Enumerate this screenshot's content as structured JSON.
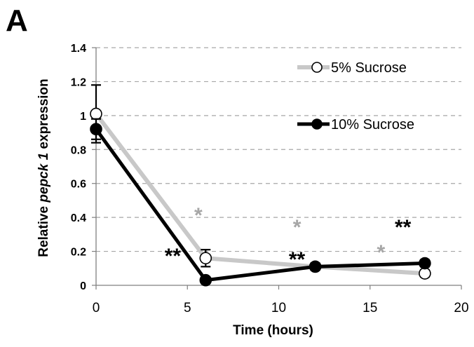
{
  "panel_label": "A",
  "chart_data": {
    "type": "line",
    "xlabel": "Time (hours)",
    "ylabel_parts": [
      "Relative ",
      "pepck 1",
      " expression"
    ],
    "xlim": [
      0,
      20
    ],
    "ylim": [
      0,
      1.4
    ],
    "x_ticks": [
      "0",
      "5",
      "10",
      "15",
      "20"
    ],
    "y_ticks": [
      "0",
      "0.2",
      "0.4",
      "0.6",
      "0.8",
      "1",
      "1.2",
      "1.4"
    ],
    "grid": true,
    "legend_position": "top-right",
    "series": [
      {
        "name": "5% Sucrose",
        "color": "#c8c8c8",
        "marker": "open-circle",
        "x": [
          0,
          6,
          12,
          18
        ],
        "y": [
          1.01,
          0.16,
          0.11,
          0.07
        ],
        "error": [
          0.17,
          0.05,
          0.02,
          0.02
        ]
      },
      {
        "name": "10% Sucrose",
        "color": "#000000",
        "marker": "filled-circle",
        "x": [
          0,
          6,
          12,
          18
        ],
        "y": [
          0.92,
          0.03,
          0.11,
          0.13
        ],
        "error": [
          0.06,
          0.01,
          0.02,
          0.02
        ]
      }
    ],
    "annotations": [
      {
        "text": "*",
        "x": 5.6,
        "y": 0.43,
        "color": "#a6a6a6"
      },
      {
        "text": "**",
        "x": 4.2,
        "y": 0.19,
        "color": "#000000"
      },
      {
        "text": "*",
        "x": 11.0,
        "y": 0.36,
        "color": "#a6a6a6"
      },
      {
        "text": "**",
        "x": 11.0,
        "y": 0.17,
        "color": "#000000"
      },
      {
        "text": "*",
        "x": 15.6,
        "y": 0.21,
        "color": "#a6a6a6"
      },
      {
        "text": "**",
        "x": 16.8,
        "y": 0.36,
        "color": "#000000"
      }
    ]
  }
}
